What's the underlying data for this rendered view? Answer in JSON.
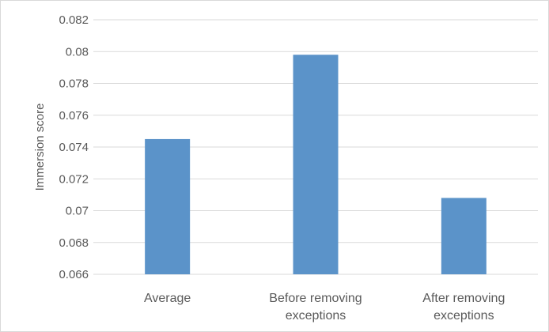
{
  "chart_data": {
    "type": "bar",
    "ylabel": "Immersion score",
    "xlabel": "",
    "ylim": [
      0.066,
      0.082
    ],
    "yticks": [
      "0.066",
      "0.068",
      "0.07",
      "0.072",
      "0.074",
      "0.076",
      "0.078",
      "0.08",
      "0.082"
    ],
    "categories": [
      [
        "Average"
      ],
      [
        "Before removing",
        "exceptions"
      ],
      [
        "After removing",
        "exceptions"
      ]
    ],
    "values": [
      0.0745,
      0.0798,
      0.0708
    ],
    "grid": true,
    "bar_color": "#5b93c9",
    "grid_color": "#d9d9d9"
  }
}
